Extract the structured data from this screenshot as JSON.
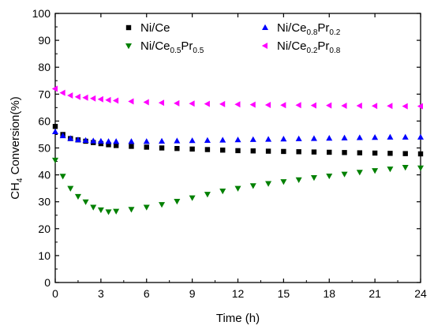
{
  "chart_data": {
    "type": "scatter",
    "xlabel": "Time (h)",
    "ylabel": "CH4 Conversion(%)",
    "ylabel_parts": {
      "pre": "CH",
      "sub": "4",
      "post": " Conversion(%)"
    },
    "xlim": [
      0,
      24
    ],
    "ylim": [
      0,
      100
    ],
    "xticks": [
      0,
      3,
      6,
      9,
      12,
      15,
      18,
      21,
      24
    ],
    "yticks": [
      0,
      10,
      20,
      30,
      40,
      50,
      60,
      70,
      80,
      90,
      100
    ],
    "grid": false,
    "legend_position": "top",
    "series": [
      {
        "name": "Ni/Ce",
        "name_parts": [
          {
            "t": "Ni/Ce",
            "sub": false
          }
        ],
        "marker": "square",
        "color": "#000000",
        "points": [
          [
            0,
            58
          ],
          [
            0.5,
            55
          ],
          [
            1,
            53.5
          ],
          [
            1.5,
            53
          ],
          [
            2,
            52.5
          ],
          [
            2.5,
            52
          ],
          [
            3,
            51.6
          ],
          [
            3.5,
            51.2
          ],
          [
            4,
            50.9
          ],
          [
            5,
            50.6
          ],
          [
            6,
            50.3
          ],
          [
            7,
            50
          ],
          [
            8,
            49.8
          ],
          [
            9,
            49.6
          ],
          [
            10,
            49.4
          ],
          [
            11,
            49.2
          ],
          [
            12,
            49
          ],
          [
            13,
            48.9
          ],
          [
            14,
            48.8
          ],
          [
            15,
            48.7
          ],
          [
            16,
            48.6
          ],
          [
            17,
            48.5
          ],
          [
            18,
            48.4
          ],
          [
            19,
            48.3
          ],
          [
            20,
            48.2
          ],
          [
            21,
            48.1
          ],
          [
            22,
            48
          ],
          [
            23,
            47.9
          ],
          [
            24,
            47.8
          ]
        ]
      },
      {
        "name": "Ni/Ce0.8Pr0.2",
        "name_parts": [
          {
            "t": "Ni/Ce",
            "sub": false
          },
          {
            "t": "0.8",
            "sub": true
          },
          {
            "t": "Pr",
            "sub": false
          },
          {
            "t": "0.2",
            "sub": true
          }
        ],
        "marker": "triangle-up",
        "color": "#0000ff",
        "points": [
          [
            0,
            56
          ],
          [
            0.5,
            54.5
          ],
          [
            1,
            53.5
          ],
          [
            1.5,
            53
          ],
          [
            2,
            52.8
          ],
          [
            2.5,
            52.6
          ],
          [
            3,
            52.5
          ],
          [
            3.5,
            52.4
          ],
          [
            4,
            52.4
          ],
          [
            5,
            52.4
          ],
          [
            6,
            52.4
          ],
          [
            7,
            52.5
          ],
          [
            8,
            52.6
          ],
          [
            9,
            52.7
          ],
          [
            10,
            52.8
          ],
          [
            11,
            52.9
          ],
          [
            12,
            53
          ],
          [
            13,
            53.1
          ],
          [
            14,
            53.2
          ],
          [
            15,
            53.3
          ],
          [
            16,
            53.4
          ],
          [
            17,
            53.5
          ],
          [
            18,
            53.6
          ],
          [
            19,
            53.7
          ],
          [
            20,
            53.8
          ],
          [
            21,
            53.9
          ],
          [
            22,
            54
          ],
          [
            23,
            54
          ],
          [
            24,
            54
          ]
        ]
      },
      {
        "name": "Ni/Ce0.5Pr0.5",
        "name_parts": [
          {
            "t": "Ni/Ce",
            "sub": false
          },
          {
            "t": "0.5",
            "sub": true
          },
          {
            "t": "Pr",
            "sub": false
          },
          {
            "t": "0.5",
            "sub": true
          }
        ],
        "marker": "triangle-down",
        "color": "#008000",
        "points": [
          [
            0,
            45.5
          ],
          [
            0.5,
            39.5
          ],
          [
            1,
            35
          ],
          [
            1.5,
            32
          ],
          [
            2,
            30
          ],
          [
            2.5,
            28
          ],
          [
            3,
            27
          ],
          [
            3.5,
            26.3
          ],
          [
            4,
            26.5
          ],
          [
            5,
            27.2
          ],
          [
            6,
            28
          ],
          [
            7,
            29
          ],
          [
            8,
            30.2
          ],
          [
            9,
            31.5
          ],
          [
            10,
            32.8
          ],
          [
            11,
            34
          ],
          [
            12,
            35
          ],
          [
            13,
            36
          ],
          [
            14,
            36.8
          ],
          [
            15,
            37.5
          ],
          [
            16,
            38.2
          ],
          [
            17,
            39
          ],
          [
            18,
            39.6
          ],
          [
            19,
            40.3
          ],
          [
            20,
            41
          ],
          [
            21,
            41.6
          ],
          [
            22,
            42.2
          ],
          [
            23,
            42.8
          ],
          [
            24,
            42.6
          ]
        ]
      },
      {
        "name": "Ni/Ce0.2Pr0.8",
        "name_parts": [
          {
            "t": "Ni/Ce",
            "sub": false
          },
          {
            "t": "0.2",
            "sub": true
          },
          {
            "t": "Pr",
            "sub": false
          },
          {
            "t": "0.8",
            "sub": true
          }
        ],
        "marker": "triangle-left",
        "color": "#ff00ff",
        "points": [
          [
            0,
            72
          ],
          [
            0.5,
            70.5
          ],
          [
            1,
            69.5
          ],
          [
            1.5,
            69
          ],
          [
            2,
            68.7
          ],
          [
            2.5,
            68.4
          ],
          [
            3,
            68.1
          ],
          [
            3.5,
            67.8
          ],
          [
            4,
            67.6
          ],
          [
            5,
            67.3
          ],
          [
            6,
            67
          ],
          [
            7,
            66.8
          ],
          [
            8,
            66.6
          ],
          [
            9,
            66.5
          ],
          [
            10,
            66.4
          ],
          [
            11,
            66.3
          ],
          [
            12,
            66.2
          ],
          [
            13,
            66.1
          ],
          [
            14,
            66
          ],
          [
            15,
            65.9
          ],
          [
            16,
            65.9
          ],
          [
            17,
            65.8
          ],
          [
            18,
            65.8
          ],
          [
            19,
            65.7
          ],
          [
            20,
            65.7
          ],
          [
            21,
            65.6
          ],
          [
            22,
            65.6
          ],
          [
            23,
            65.5
          ],
          [
            24,
            65.5
          ]
        ]
      }
    ]
  }
}
